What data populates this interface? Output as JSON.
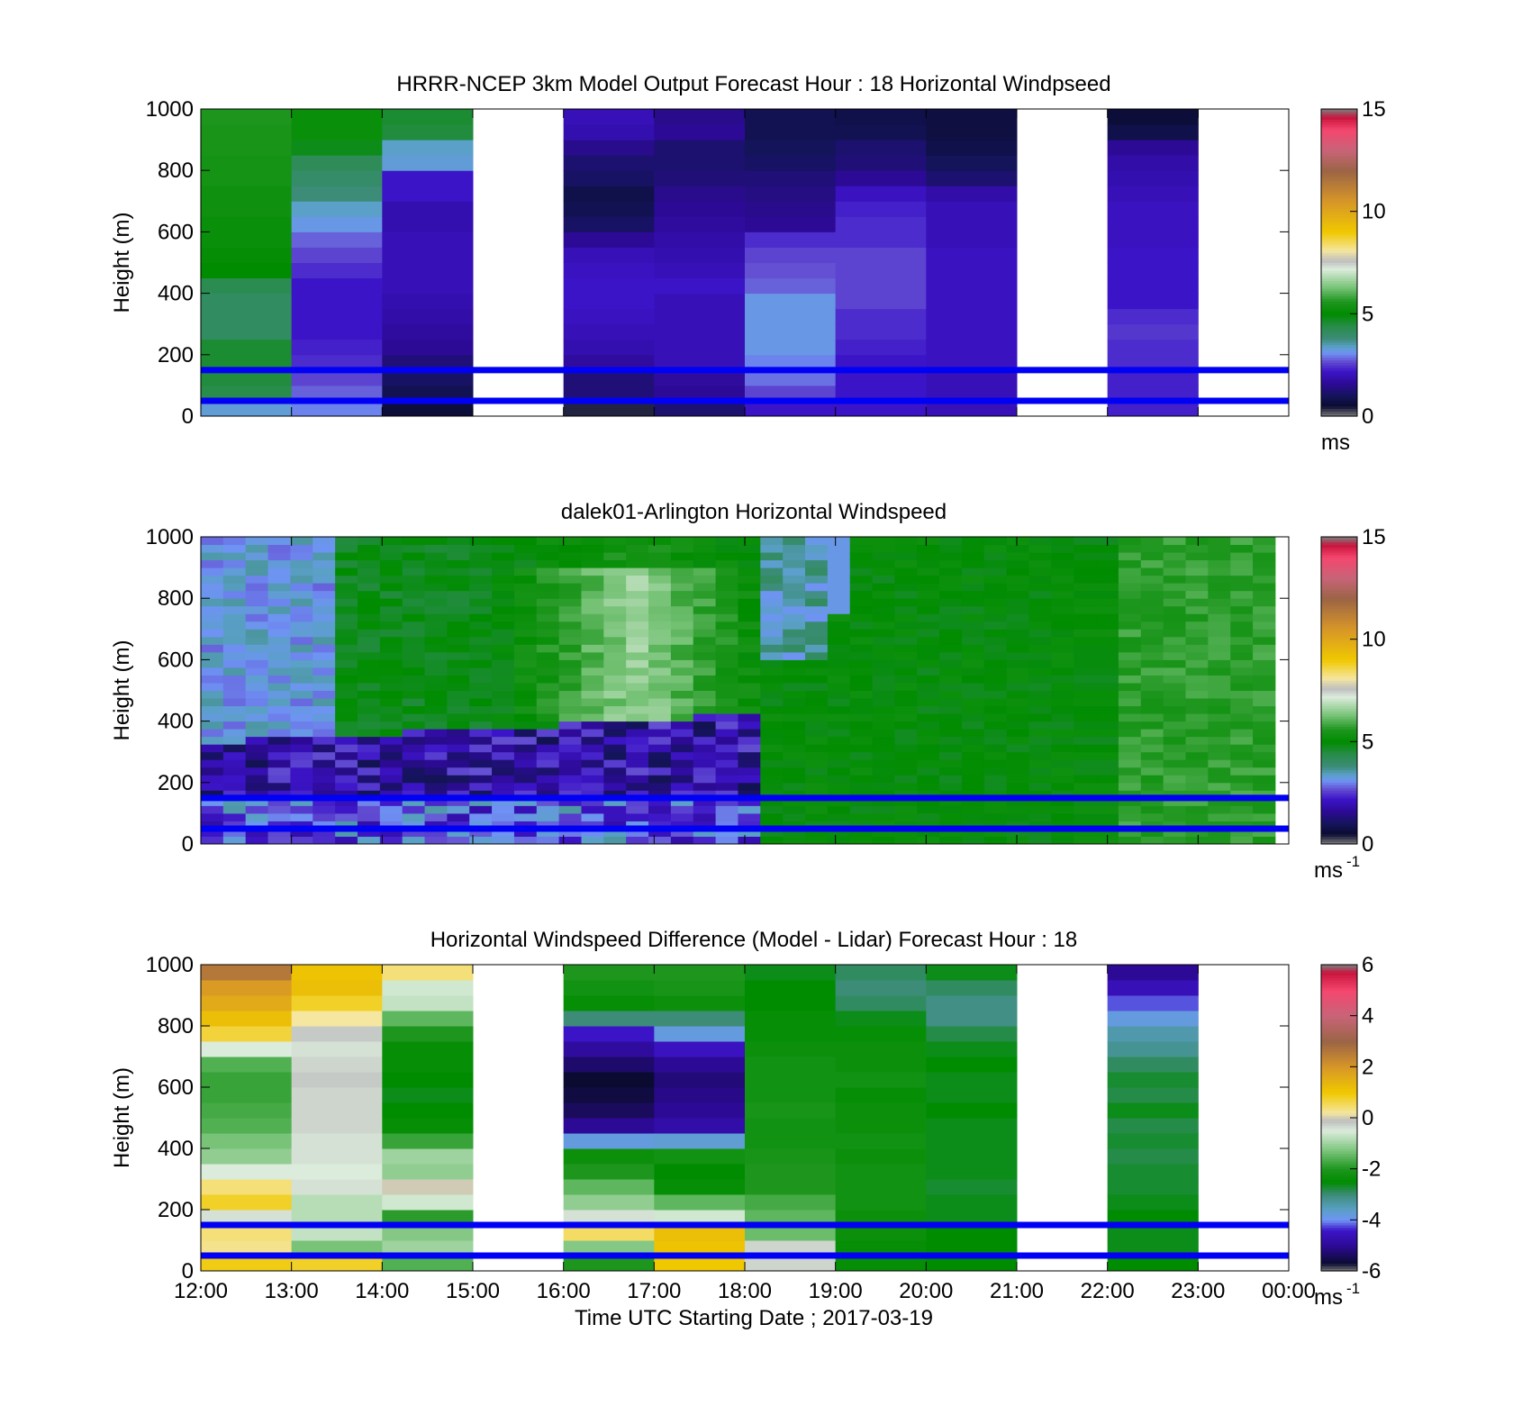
{
  "chart_data": [
    {
      "type": "heatmap",
      "title": "HRRR-NCEP 3km Model Output   Forecast Hour : 18 Horizontal Windpseed",
      "xlabel": "",
      "ylabel": "Height (m)",
      "ylim": [
        0,
        1000
      ],
      "yticks": [
        "0",
        "200",
        "400",
        "600",
        "800",
        "1000"
      ],
      "xlim": [
        12,
        24
      ],
      "xticks": [],
      "colorbar": {
        "min": 0,
        "max": 15,
        "ticks": [
          "0",
          "5",
          "10",
          "15"
        ],
        "unit": "ms",
        "unit_sup": "",
        "scale": "speed"
      },
      "reference_lines_m": [
        150,
        50
      ],
      "reference_line_color": "#0000f5",
      "heights_m": [
        25,
        75,
        125,
        175,
        225,
        275,
        325,
        375,
        425,
        475,
        525,
        575,
        625,
        675,
        725,
        775,
        825,
        875,
        925,
        975
      ],
      "columns": [
        {
          "hour": 12,
          "values": [
            3.3,
            4.4,
            4.5,
            4.6,
            4.6,
            4.1,
            4.1,
            4.1,
            4.3,
            5.0,
            5.1,
            5.2,
            5.2,
            5.3,
            5.3,
            5.4,
            5.4,
            5.5,
            5.5,
            5.6
          ]
        },
        {
          "hour": 13,
          "values": [
            3.0,
            2.8,
            2.6,
            2.4,
            2.3,
            2.2,
            2.2,
            2.2,
            2.2,
            2.4,
            2.6,
            2.8,
            3.2,
            3.4,
            3.8,
            4.0,
            4.2,
            4.8,
            5.2,
            5.2
          ]
        },
        {
          "hour": 14,
          "values": [
            0.6,
            0.9,
            1.1,
            1.3,
            1.6,
            1.7,
            1.8,
            1.9,
            2.0,
            2.0,
            2.0,
            2.0,
            1.9,
            1.9,
            2.2,
            2.2,
            3.3,
            3.4,
            4.5,
            4.6
          ]
        },
        {
          "hour": 15,
          "values": []
        },
        {
          "hour": 16,
          "values": [
            0.4,
            1.3,
            1.3,
            1.7,
            1.9,
            2.0,
            2.1,
            2.2,
            2.2,
            2.1,
            2.0,
            1.6,
            1.1,
            0.9,
            0.8,
            1.1,
            1.2,
            1.5,
            1.9,
            2.0
          ]
        },
        {
          "hour": 17,
          "values": [
            1.2,
            1.6,
            1.7,
            2.0,
            2.0,
            2.0,
            2.0,
            2.0,
            2.2,
            2.0,
            1.9,
            1.8,
            1.7,
            1.6,
            1.5,
            1.3,
            1.2,
            1.2,
            1.6,
            1.5
          ]
        },
        {
          "hour": 18,
          "values": [
            2.2,
            2.6,
            2.9,
            3.0,
            3.2,
            3.2,
            3.2,
            3.2,
            2.8,
            2.7,
            2.6,
            2.4,
            1.6,
            1.5,
            1.4,
            1.3,
            1.1,
            1.0,
            0.9,
            0.9
          ]
        },
        {
          "hour": 19,
          "values": [
            2.2,
            2.2,
            2.2,
            2.2,
            2.3,
            2.4,
            2.4,
            2.6,
            2.6,
            2.6,
            2.6,
            2.4,
            2.4,
            2.3,
            2.1,
            1.6,
            1.3,
            1.2,
            0.9,
            0.8
          ]
        },
        {
          "hour": 20,
          "values": [
            2.0,
            2.0,
            2.0,
            2.1,
            2.1,
            2.1,
            2.1,
            2.1,
            2.1,
            2.1,
            2.1,
            2.0,
            2.0,
            2.0,
            1.8,
            1.2,
            1.0,
            0.8,
            0.7,
            0.7
          ]
        },
        {
          "hour": 21,
          "values": []
        },
        {
          "hour": 22,
          "values": [
            2.3,
            2.3,
            2.3,
            2.4,
            2.4,
            2.5,
            2.4,
            2.2,
            2.2,
            2.2,
            2.2,
            2.1,
            2.1,
            2.1,
            2.0,
            1.9,
            1.8,
            1.6,
            0.8,
            0.6
          ]
        },
        {
          "hour": 23,
          "values": []
        }
      ]
    },
    {
      "type": "heatmap",
      "title": "dalek01-Arlington  Horizontal Windspeed",
      "xlabel": "",
      "ylabel": "Height (m)",
      "ylim": [
        0,
        1000
      ],
      "yticks": [
        "0",
        "200",
        "400",
        "600",
        "800",
        "1000"
      ],
      "xlim": [
        12,
        24
      ],
      "xticks": [],
      "colorbar": {
        "min": 0,
        "max": 15,
        "ticks": [
          "0",
          "5",
          "10",
          "15"
        ],
        "unit": "ms",
        "unit_sup": "-1",
        "scale": "speed"
      },
      "reference_lines_m": [
        150,
        50
      ],
      "reference_line_color": "#0000f5",
      "lidar_field": {
        "t_start": 12.0,
        "t_end": 23.85,
        "n_cols": 48,
        "dz_m": 25,
        "description": "model of lidar scans: stable blue layer below ~350 m before 18:00, green mixed layer after"
      }
    },
    {
      "type": "heatmap",
      "title": "Horizontal Windspeed Difference (Model - Lidar) Forecast Hour : 18",
      "xlabel": "Time UTC  Starting Date ; 2017-03-19",
      "ylabel": "Height (m)",
      "ylim": [
        0,
        1000
      ],
      "yticks": [
        "0",
        "200",
        "400",
        "600",
        "800",
        "1000"
      ],
      "xlim": [
        12,
        24
      ],
      "xticks": [
        "12:00",
        "13:00",
        "14:00",
        "15:00",
        "16:00",
        "17:00",
        "18:00",
        "19:00",
        "20:00",
        "21:00",
        "22:00",
        "23:00",
        "00:00"
      ],
      "colorbar": {
        "min": -6,
        "max": 6,
        "ticks": [
          "-6",
          "-4",
          "-2",
          "0",
          "2",
          "4",
          "6"
        ],
        "unit": "ms",
        "unit_sup": "-1",
        "scale": "diff"
      },
      "reference_lines_m": [
        150,
        50
      ],
      "reference_line_color": "#0000f5",
      "heights_m": [
        25,
        75,
        125,
        175,
        225,
        275,
        325,
        375,
        425,
        475,
        525,
        575,
        625,
        675,
        725,
        775,
        825,
        875,
        925,
        975
      ],
      "columns": [
        {
          "hour": 12,
          "values": [
            0.9,
            0.3,
            0.4,
            -0.4,
            0.8,
            0.4,
            -0.5,
            -1.1,
            -1.3,
            -1.6,
            -1.7,
            -1.8,
            -1.8,
            -1.6,
            -0.5,
            0.7,
            1.2,
            1.6,
            1.9,
            2.6
          ]
        },
        {
          "hour": 13,
          "values": [
            0.8,
            -1.3,
            -0.7,
            -0.8,
            -0.8,
            -0.4,
            -0.5,
            -0.4,
            -0.4,
            -0.3,
            -0.3,
            -0.3,
            -0.2,
            -0.3,
            -0.4,
            -0.2,
            0.2,
            0.8,
            1.2,
            1.1
          ]
        },
        {
          "hour": 14,
          "values": [
            -1.6,
            -1.0,
            -1.2,
            -1.9,
            -0.6,
            0.0,
            -1.1,
            -1.0,
            -1.8,
            -2.4,
            -2.5,
            -2.6,
            -2.5,
            -2.4,
            -2.4,
            -2.0,
            -1.5,
            -0.7,
            -0.6,
            0.4
          ]
        },
        {
          "hour": 15,
          "values": []
        },
        {
          "hour": 16,
          "values": [
            -2.0,
            -1.2,
            0.5,
            -0.4,
            -1.1,
            -1.5,
            -2.0,
            -2.3,
            -3.8,
            -5.0,
            -5.4,
            -5.6,
            -5.7,
            -5.3,
            -4.9,
            -4.4,
            -3.0,
            -2.4,
            -2.2,
            -2.0
          ]
        },
        {
          "hour": 17,
          "values": [
            1.0,
            1.1,
            1.2,
            -0.6,
            -1.5,
            -2.4,
            -2.5,
            -2.2,
            -3.7,
            -4.8,
            -5.0,
            -5.1,
            -5.2,
            -5.0,
            -4.5,
            -3.8,
            -3.0,
            -2.3,
            -2.1,
            -2.0
          ]
        },
        {
          "hour": 18,
          "values": [
            -0.3,
            -0.3,
            -1.4,
            -1.5,
            -1.7,
            -2.0,
            -2.0,
            -2.1,
            -2.2,
            -2.2,
            -2.1,
            -2.2,
            -2.2,
            -2.2,
            -2.3,
            -2.4,
            -2.4,
            -2.5,
            -2.5,
            -2.6
          ]
        },
        {
          "hour": 19,
          "values": [
            -2.4,
            -2.4,
            -2.3,
            -2.3,
            -2.2,
            -2.2,
            -2.2,
            -2.3,
            -2.2,
            -2.3,
            -2.3,
            -2.4,
            -2.2,
            -2.3,
            -2.3,
            -2.4,
            -2.6,
            -2.9,
            -3.0,
            -2.9
          ]
        },
        {
          "hour": 20,
          "values": [
            -2.5,
            -2.5,
            -2.5,
            -2.6,
            -2.6,
            -2.7,
            -2.6,
            -2.6,
            -2.6,
            -2.6,
            -2.5,
            -2.6,
            -2.6,
            -2.5,
            -2.6,
            -2.8,
            -3.1,
            -3.1,
            -2.9,
            -2.6
          ]
        },
        {
          "hour": 21,
          "values": []
        },
        {
          "hour": 22,
          "values": [
            -2.5,
            -2.6,
            -2.6,
            -2.5,
            -2.6,
            -2.7,
            -2.7,
            -2.8,
            -2.7,
            -2.8,
            -2.6,
            -2.8,
            -2.7,
            -2.9,
            -3.2,
            -3.4,
            -3.8,
            -4.2,
            -4.6,
            -5.0
          ]
        },
        {
          "hour": 23,
          "values": []
        }
      ]
    }
  ]
}
